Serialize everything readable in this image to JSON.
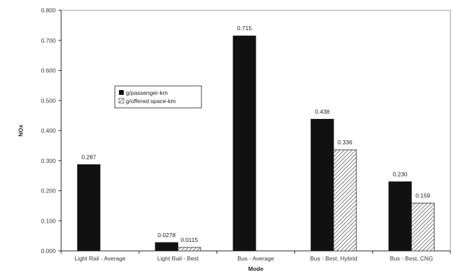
{
  "chart_data": {
    "type": "bar",
    "categories": [
      "Light Rail - Average",
      "Light Rail - Best",
      "Bus - Average",
      "Bus - Best, Hybrid",
      "Bus - Best, CNG"
    ],
    "series": [
      {
        "name": "g/passenger-km",
        "values": [
          0.287,
          0.0278,
          0.715,
          0.438,
          0.23
        ],
        "labels": [
          "0.287",
          "0.0278",
          "0.715",
          "0.438",
          "0.230"
        ],
        "color": "#111111",
        "pattern": "solid"
      },
      {
        "name": "g/offered space-km",
        "values": [
          null,
          0.0115,
          null,
          0.336,
          0.159
        ],
        "labels": [
          "",
          "0.0115",
          "",
          "0.336",
          "0.159"
        ],
        "color": "#ffffff",
        "pattern": "diagonal-hatch"
      }
    ],
    "y_ticks": [
      "0.000",
      "0.100",
      "0.200",
      "0.300",
      "0.400",
      "0.500",
      "0.600",
      "0.700",
      "0.800"
    ],
    "ylim": [
      0,
      0.8
    ],
    "xlabel": "Mode",
    "ylabel": "NOx",
    "title": "",
    "grid": false,
    "legend_position": "upper-left-inside"
  }
}
